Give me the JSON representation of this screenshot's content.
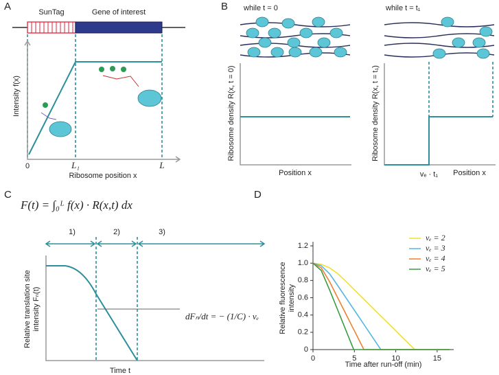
{
  "panels": {
    "A": {
      "label": "A",
      "suntag": "SunTag",
      "gene": "Gene of interest",
      "y_label": "Intensity f(x)",
      "x_ticks": [
        "0",
        "L₁",
        "L"
      ],
      "x_label": "Ribosome position x"
    },
    "B": {
      "label": "B",
      "left_title": "while t = 0",
      "right_title": "while t = t₁",
      "left_y_label": "Ribosome density R(x, t = 0)",
      "right_y_label": "Ribosome density R(x, t = t₁)",
      "left_x_label": "Position x",
      "right_x_label": "Position x",
      "right_tick": "vₑ · t₁"
    },
    "C": {
      "label": "C",
      "formula": "F(t) = ∫₀ᴸ f(x) · R(x,t) dx",
      "phases": [
        "1)",
        "2)",
        "3)"
      ],
      "y_label": [
        "Relative translation site",
        "intensity Fₙ(t)"
      ],
      "slope": "dFₙ/dt = − (1/C) · vₑ",
      "x_label": "Time t"
    }
  },
  "chart_data": {
    "type": "line",
    "panel_label": "D",
    "x_label": "Time after run-off (min)",
    "y_label": [
      "Relative fluorescence",
      "intensity"
    ],
    "xlim": [
      0,
      17
    ],
    "ylim": [
      0,
      1.2
    ],
    "xticks": [
      0,
      5,
      10,
      15
    ],
    "yticks": [
      0,
      0.2,
      0.4,
      0.6,
      0.8,
      {
        "value": 1,
        "label": "1.0"
      },
      1.2
    ],
    "legend": "upper right",
    "series": [
      {
        "name": "vₑ = 2",
        "color": "#f2df2b",
        "x": [
          0,
          1,
          2,
          3,
          4,
          5,
          6,
          7,
          8,
          9,
          10,
          11,
          12,
          12.3,
          16.5
        ],
        "values": [
          1,
          0.986,
          0.946,
          0.878,
          0.787,
          0.692,
          0.597,
          0.502,
          0.407,
          0.313,
          0.218,
          0.123,
          0.028,
          0,
          0
        ]
      },
      {
        "name": "vₑ = 3",
        "color": "#55b6e3",
        "x": [
          0,
          1,
          2,
          3,
          4,
          5,
          6,
          7,
          8,
          8.2,
          16.5
        ],
        "values": [
          1,
          0.97,
          0.878,
          0.739,
          0.597,
          0.455,
          0.313,
          0.17,
          0.028,
          0,
          0
        ]
      },
      {
        "name": "vₑ = 4",
        "color": "#f07f2e",
        "x": [
          0,
          1,
          2,
          3,
          4,
          5,
          6,
          6.15,
          16.5
        ],
        "values": [
          1,
          0.946,
          0.787,
          0.597,
          0.407,
          0.218,
          0.028,
          0,
          0
        ]
      },
      {
        "name": "vₑ = 5",
        "color": "#3a9a3f",
        "x": [
          0,
          1,
          2,
          3,
          4,
          4.92,
          16.5
        ],
        "values": [
          1,
          0.915,
          0.692,
          0.455,
          0.218,
          0,
          0
        ]
      }
    ]
  }
}
